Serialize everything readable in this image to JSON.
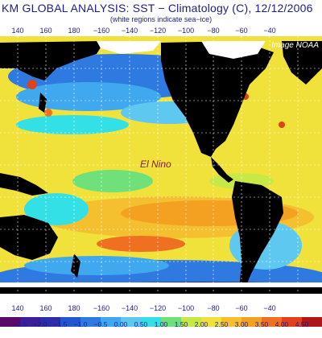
{
  "map": {
    "title": "KM GLOBAL ANALYSIS: SST − Climatology (C), 12/12/2006",
    "subtitle": "(white regions indicate sea−ice)",
    "credit": "Image NOAA",
    "annotation": "El Nino",
    "longitude_ticks": [
      "140",
      "160",
      "180",
      "−160",
      "−140",
      "−120",
      "−100",
      "−80",
      "−60",
      "−40"
    ],
    "colors": {
      "deep_blue": "#2b2ea8",
      "blue": "#2f7ae0",
      "light_blue": "#5ec8f0",
      "cyan": "#33e0e6",
      "green": "#6fe07a",
      "yellow": "#f0e23a",
      "orange": "#f4a020",
      "red": "#e0401a",
      "land": "#000000",
      "ice": "#ffffff",
      "text": "#1c1c8c"
    }
  },
  "legend": {
    "labels": [
      "−2.5",
      "−2.0",
      "−1.5",
      "−1.0",
      "−0.5",
      "0.00",
      "0.50",
      "1.00",
      "1.50",
      "2.00",
      "2.50",
      "3.00",
      "3.50",
      "4.00",
      "4.50"
    ],
    "colors": [
      "#5a0a6a",
      "#3b1e9a",
      "#2b2ea8",
      "#2255d0",
      "#2f7ae0",
      "#3fa8ef",
      "#5ec8f0",
      "#33e0e6",
      "#6fe07a",
      "#c8e846",
      "#f0e23a",
      "#f4c030",
      "#f4a020",
      "#ef7020",
      "#e0401a",
      "#b01818"
    ]
  }
}
